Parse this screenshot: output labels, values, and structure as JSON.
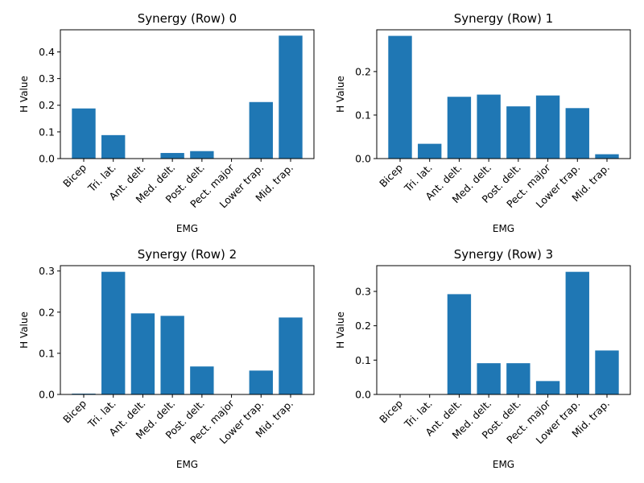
{
  "chart_data": [
    {
      "type": "bar",
      "title": "Synergy (Row) 0",
      "xlabel": "EMG",
      "ylabel": "H Value",
      "categories": [
        "Bicep",
        "Tri. lat.",
        "Ant. delt.",
        "Med. delt.",
        "Post. delt.",
        "Pect. major",
        "Lower trap.",
        "Mid. trap."
      ],
      "values": [
        0.188,
        0.088,
        0.0,
        0.021,
        0.028,
        0.0,
        0.212,
        0.461
      ],
      "ylim": [
        0,
        0.483
      ],
      "yticks": [
        0.0,
        0.1,
        0.2,
        0.3,
        0.4
      ],
      "ytick_labels": [
        "0.0",
        "0.1",
        "0.2",
        "0.3",
        "0.4"
      ],
      "color": "#1f77b4",
      "grid": false
    },
    {
      "type": "bar",
      "title": "Synergy (Row) 1",
      "xlabel": "EMG",
      "ylabel": "H Value",
      "categories": [
        "Bicep",
        "Tri. lat.",
        "Ant. delt.",
        "Med. delt.",
        "Post. delt.",
        "Pect. major",
        "Lower trap.",
        "Mid. trap."
      ],
      "values": [
        0.282,
        0.034,
        0.142,
        0.147,
        0.12,
        0.145,
        0.116,
        0.01
      ],
      "ylim": [
        0,
        0.296
      ],
      "yticks": [
        0.0,
        0.1,
        0.2
      ],
      "ytick_labels": [
        "0.0",
        "0.1",
        "0.2"
      ],
      "color": "#1f77b4",
      "grid": false
    },
    {
      "type": "bar",
      "title": "Synergy (Row) 2",
      "xlabel": "EMG",
      "ylabel": "H Value",
      "categories": [
        "Bicep",
        "Tri. lat.",
        "Ant. delt.",
        "Med. delt.",
        "Post. delt.",
        "Pect. major",
        "Lower trap.",
        "Mid. trap."
      ],
      "values": [
        0.002,
        0.298,
        0.197,
        0.191,
        0.068,
        0.0,
        0.058,
        0.187
      ],
      "ylim": [
        0,
        0.313
      ],
      "yticks": [
        0.0,
        0.1,
        0.2,
        0.3
      ],
      "ytick_labels": [
        "0.0",
        "0.1",
        "0.2",
        "0.3"
      ],
      "color": "#1f77b4",
      "grid": false
    },
    {
      "type": "bar",
      "title": "Synergy (Row) 3",
      "xlabel": "EMG",
      "ylabel": "H Value",
      "categories": [
        "Bicep",
        "Tri. lat.",
        "Ant. delt.",
        "Med. delt.",
        "Post. delt.",
        "Pect. major",
        "Lower trap.",
        "Mid. trap."
      ],
      "values": [
        0.0,
        0.0,
        0.292,
        0.091,
        0.091,
        0.039,
        0.357,
        0.128
      ],
      "ylim": [
        0,
        0.375
      ],
      "yticks": [
        0.0,
        0.1,
        0.2,
        0.3
      ],
      "ytick_labels": [
        "0.0",
        "0.1",
        "0.2",
        "0.3"
      ],
      "color": "#1f77b4",
      "grid": false
    }
  ]
}
